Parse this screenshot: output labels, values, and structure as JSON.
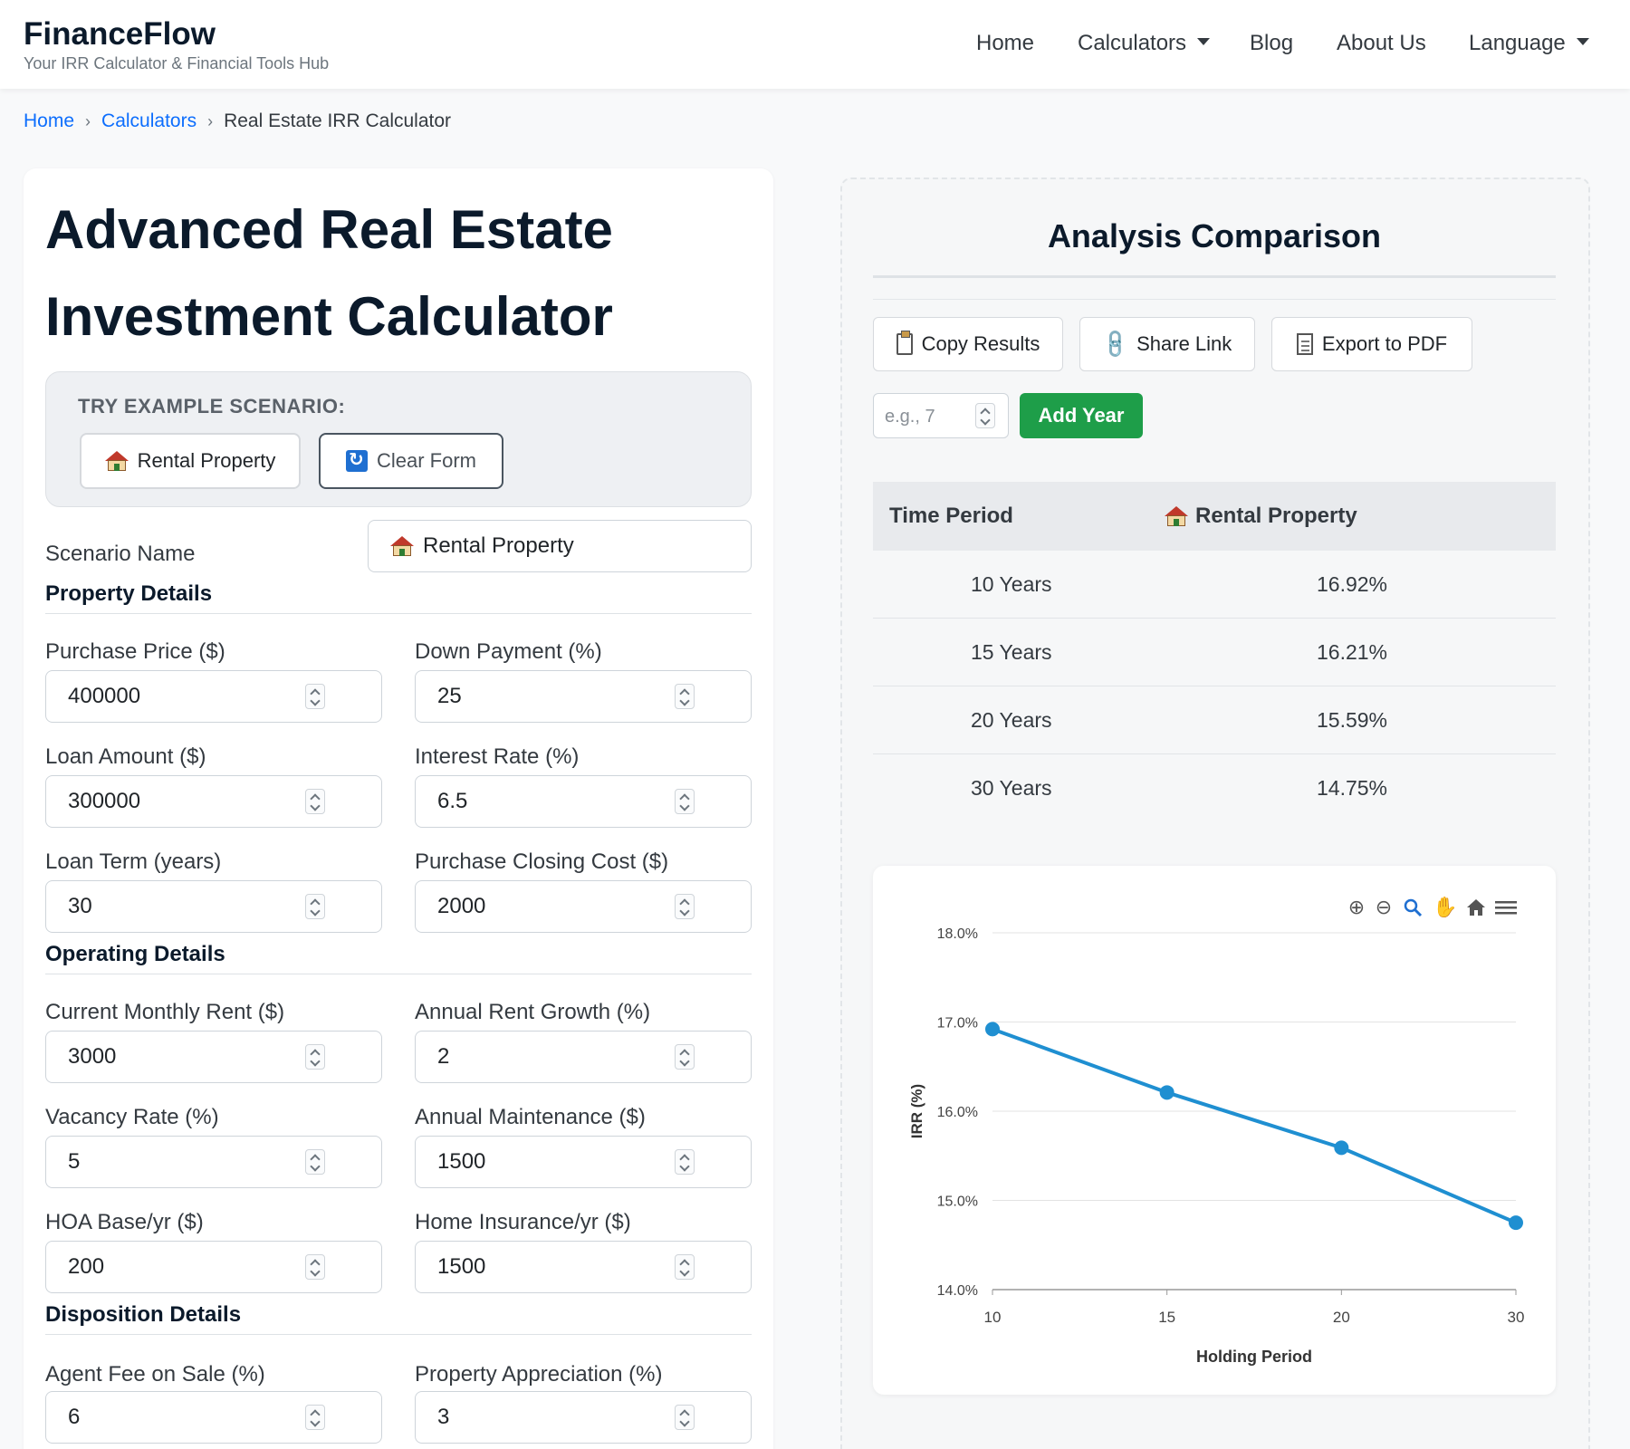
{
  "nav": {
    "brand": "FinanceFlow",
    "tagline": "Your IRR Calculator & Financial Tools Hub",
    "items": [
      "Home",
      "Calculators",
      "Blog",
      "About Us",
      "Language"
    ]
  },
  "breadcrumb": {
    "home": "Home",
    "calculators": "Calculators",
    "current": "Real Estate IRR Calculator"
  },
  "page_title": "Advanced Real Estate Investment Calculator",
  "examples": {
    "label": "TRY EXAMPLE SCENARIO:",
    "rental_button": "Rental Property",
    "clear_button": "Clear Form"
  },
  "scenario": {
    "label": "Scenario Name",
    "value": "Rental Property"
  },
  "sections": {
    "property": "Property Details",
    "operating": "Operating Details",
    "disposition": "Disposition Details"
  },
  "fields": {
    "purchase_price": {
      "label": "Purchase Price ($)",
      "value": "400000"
    },
    "down_payment": {
      "label": "Down Payment (%)",
      "value": "25"
    },
    "loan_amount": {
      "label": "Loan Amount ($)",
      "value": "300000"
    },
    "interest_rate": {
      "label": "Interest Rate (%)",
      "value": "6.5"
    },
    "loan_term": {
      "label": "Loan Term (years)",
      "value": "30"
    },
    "closing_cost": {
      "label": "Purchase Closing Cost ($)",
      "value": "2000"
    },
    "monthly_rent": {
      "label": "Current Monthly Rent ($)",
      "value": "3000"
    },
    "rent_growth": {
      "label": "Annual Rent Growth (%)",
      "value": "2"
    },
    "vacancy_rate": {
      "label": "Vacancy Rate (%)",
      "value": "5"
    },
    "maintenance": {
      "label": "Annual Maintenance ($)",
      "value": "1500"
    },
    "hoa": {
      "label": "HOA Base/yr ($)",
      "value": "200"
    },
    "insurance": {
      "label": "Home Insurance/yr ($)",
      "value": "1500"
    },
    "agent_fee": {
      "label": "Agent Fee on Sale (%)",
      "value": "6"
    },
    "appreciation": {
      "label": "Property Appreciation (%)",
      "value": "3"
    }
  },
  "analysis": {
    "title": "Analysis Comparison",
    "copy_button": "Copy Results",
    "share_button": "Share Link",
    "export_button": "Export to PDF",
    "year_placeholder": "e.g., 7",
    "add_year_button": "Add Year",
    "table": {
      "col_period": "Time Period",
      "col_scenario": "Rental Property",
      "rows": [
        {
          "period": "10 Years",
          "irr": "16.92%"
        },
        {
          "period": "15 Years",
          "irr": "16.21%"
        },
        {
          "period": "20 Years",
          "irr": "15.59%"
        },
        {
          "period": "30 Years",
          "irr": "14.75%"
        }
      ]
    }
  },
  "chart_data": {
    "type": "line",
    "categories": [
      "10",
      "15",
      "20",
      "30"
    ],
    "series": [
      {
        "values": [
          16.92,
          16.21,
          15.59,
          14.75
        ]
      }
    ],
    "xlabel": "Holding Period",
    "ylabel": "IRR (%)",
    "ylim": [
      14.0,
      18.0
    ],
    "yticks": [
      "14.0%",
      "15.0%",
      "16.0%",
      "17.0%",
      "18.0%"
    ],
    "grid": true,
    "color": "#1f8fd1"
  }
}
